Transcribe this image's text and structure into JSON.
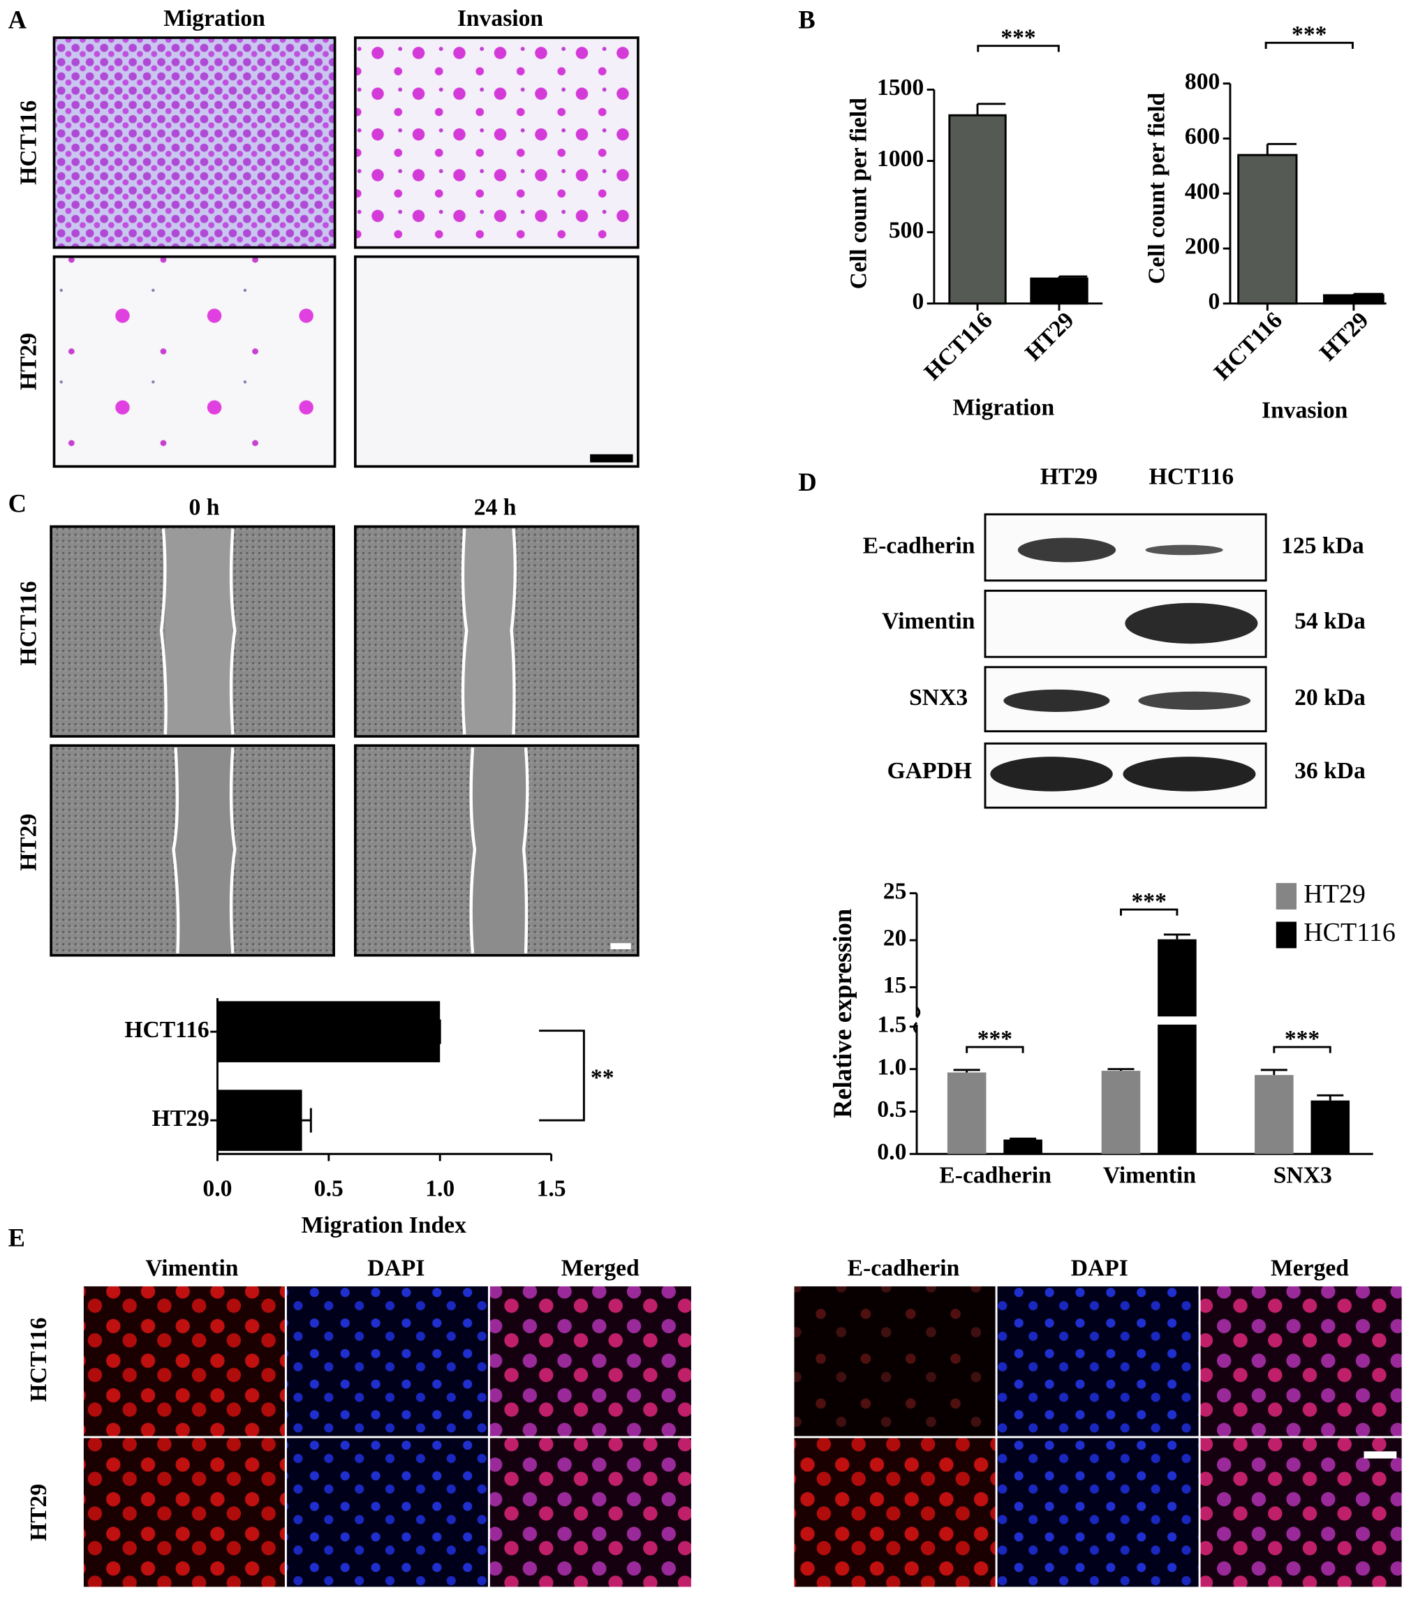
{
  "panel_labels": [
    "A",
    "B",
    "C",
    "D",
    "E"
  ],
  "panel_a": {
    "columns": [
      "Migration",
      "Invasion"
    ],
    "rows": [
      "HCT116",
      "HT29"
    ]
  },
  "panel_c": {
    "columns": [
      "0 h",
      "24 h"
    ],
    "rows": [
      "HCT116",
      "HT29"
    ]
  },
  "panel_d_blot": {
    "columns": [
      "HT29",
      "HCT116"
    ],
    "rows": [
      {
        "label": "E-cadherin",
        "size": "125 kDa"
      },
      {
        "label": "Vimentin",
        "size": "54 kDa"
      },
      {
        "label": "SNX3",
        "size": "20 kDa"
      },
      {
        "label": "GAPDH",
        "size": "36 kDa"
      }
    ]
  },
  "panel_e": {
    "groups": [
      {
        "columns": [
          "Vimentin",
          "DAPI",
          "Merged"
        ]
      },
      {
        "columns": [
          "E-cadherin",
          "DAPI",
          "Merged"
        ]
      }
    ],
    "rows": [
      "HCT116",
      "HT29"
    ]
  },
  "chart_data": [
    {
      "type": "bar",
      "y_label": "Cell count per field",
      "x_label": "Migration",
      "categories": [
        "HCT116",
        "HT29"
      ],
      "values": [
        1320,
        175
      ],
      "errors": [
        80,
        15
      ],
      "colors": [
        "#555a55",
        "#000000"
      ],
      "ylim": [
        0,
        1500
      ],
      "yticks": [
        0,
        500,
        1000,
        1500
      ],
      "significance": "***"
    },
    {
      "type": "bar",
      "y_label": "Cell count per field",
      "x_label": "Invasion",
      "categories": [
        "HCT116",
        "HT29"
      ],
      "values": [
        540,
        30
      ],
      "errors": [
        40,
        5
      ],
      "colors": [
        "#555a55",
        "#000000"
      ],
      "ylim": [
        0,
        800
      ],
      "yticks": [
        0,
        200,
        400,
        600,
        800
      ],
      "significance": "***"
    },
    {
      "type": "bar",
      "orientation": "horizontal",
      "x_label": "Migration Index",
      "categories": [
        "HCT116",
        "HT29"
      ],
      "values": [
        1.0,
        0.38
      ],
      "errors": [
        0,
        0.04
      ],
      "colors": [
        "#000000",
        "#000000"
      ],
      "xlim": [
        0,
        1.5
      ],
      "xticks": [
        {
          "value": 0,
          "label": "0.0"
        },
        0.5,
        {
          "value": 1,
          "label": "1.0"
        },
        1.5
      ],
      "significance": "**"
    },
    {
      "type": "bar",
      "y_label": "Relative expression",
      "categories": [
        "E-cadherin",
        "Vimentin",
        "SNX3"
      ],
      "series": [
        {
          "name": "HT29",
          "color": "#858585",
          "values": [
            0.96,
            0.98,
            0.93
          ],
          "errors": [
            0.03,
            0.02,
            0.06
          ]
        },
        {
          "name": "HCT116",
          "color": "#000000",
          "values": [
            0.17,
            20.1,
            0.63
          ],
          "errors": [
            0.01,
            0.5,
            0.06
          ]
        }
      ],
      "ylim": [
        0,
        25
      ],
      "ybreak": [
        1.5,
        12
      ],
      "yticks": [
        {
          "value": 0,
          "label": "0.0"
        },
        0.5,
        {
          "value": 1,
          "label": "1.0"
        },
        1.5,
        15,
        20,
        25
      ],
      "significance": [
        "***",
        "***",
        "***"
      ],
      "legend": "upper right"
    }
  ]
}
